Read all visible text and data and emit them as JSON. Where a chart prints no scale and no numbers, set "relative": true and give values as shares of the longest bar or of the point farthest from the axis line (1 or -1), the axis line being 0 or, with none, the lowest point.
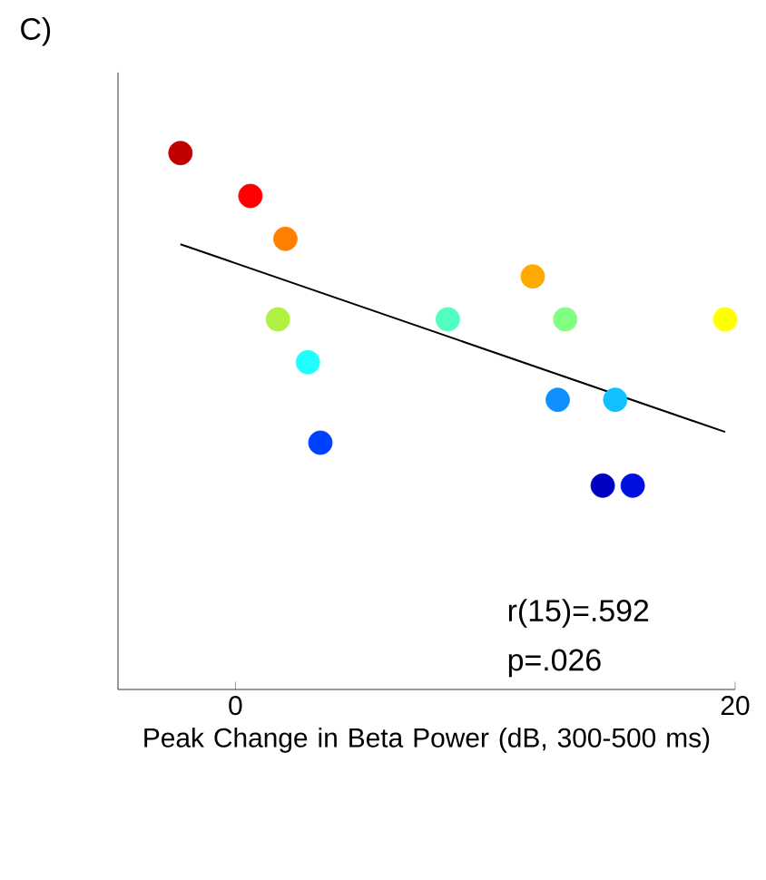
{
  "chart_data": {
    "type": "scatter",
    "xlabel": "Peak Change in Beta Power (dB, 300-500 ms)",
    "relative": true,
    "xlim": [
      -4.7,
      20
    ],
    "xticks": [
      0,
      20
    ],
    "annotations": [
      "C)",
      "r(15)=.592",
      "p=.026"
    ],
    "series": [
      {
        "marker": "circle",
        "x": [
          -2.2,
          0.6,
          2.0,
          1.7,
          2.9,
          3.4,
          8.5,
          11.9,
          13.2,
          12.9,
          15.2,
          14.7,
          15.9,
          19.6
        ],
        "values": [
          1,
          0.92,
          0.84,
          0.69,
          0.61,
          0.46,
          0.69,
          0.77,
          0.69,
          0.54,
          0.54,
          0.38,
          0.38,
          0.69
        ],
        "colors": [
          "#c00000",
          "#ff0000",
          "#ff8000",
          "#b0f040",
          "#20ffff",
          "#0040ff",
          "#50ffc0",
          "#ffaa00",
          "#80ff80",
          "#1090ff",
          "#10c0ff",
          "#0000c0",
          "#0010e0",
          "#ffff00"
        ]
      },
      {
        "type": "line",
        "marker": "none",
        "color": "#000000",
        "x": [
          -2.2,
          19.6
        ],
        "values": [
          0.83,
          0.48
        ]
      }
    ]
  }
}
